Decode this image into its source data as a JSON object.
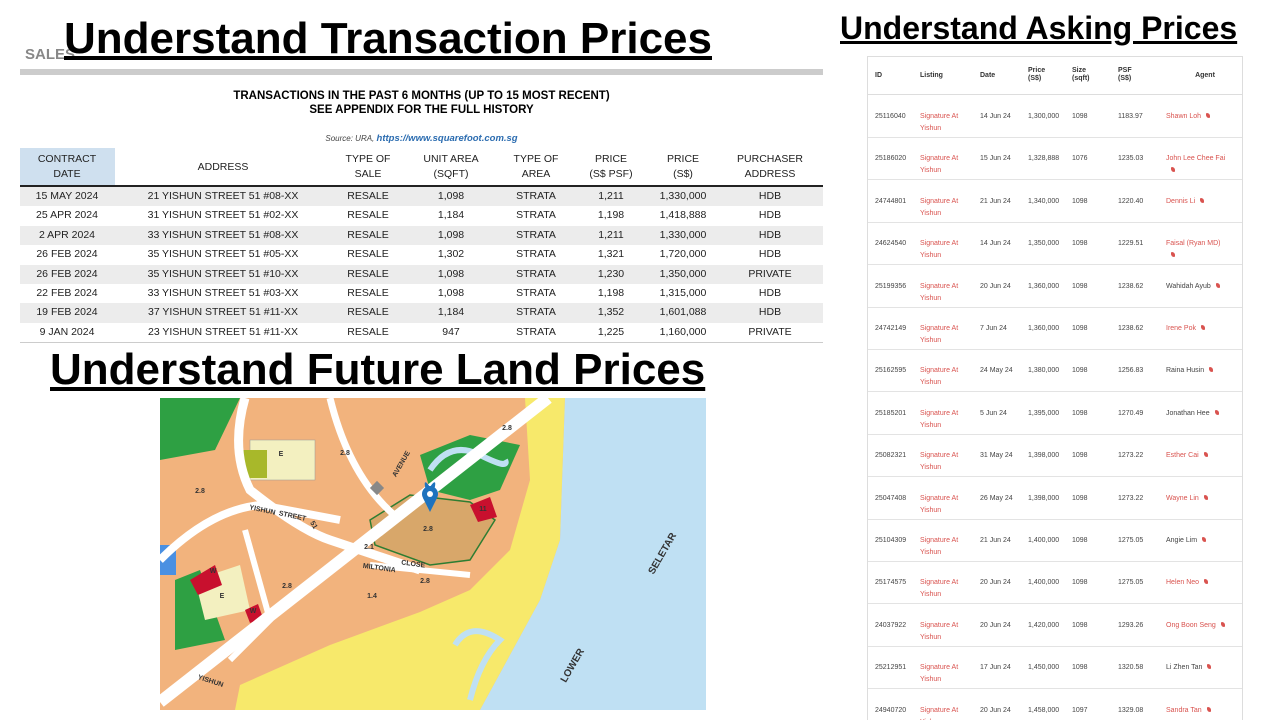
{
  "transaction_section": {
    "title": "Understand Transaction Prices",
    "sales_label": "SALES",
    "table_title": [
      "TRANSACTIONS IN THE PAST 6 MONTHS (UP TO 15 MOST RECENT)",
      "SEE APPENDIX FOR THE FULL HISTORY"
    ],
    "source_prefix": "Source: URA,",
    "source_link": "https://www.squarefoot.com.sg",
    "columns": [
      [
        "CONTRACT",
        "DATE"
      ],
      [
        "ADDRESS"
      ],
      [
        "TYPE OF",
        "SALE"
      ],
      [
        "UNIT AREA",
        "(SQFT)"
      ],
      [
        "TYPE OF",
        "AREA"
      ],
      [
        "PRICE",
        "(S$ PSF)"
      ],
      [
        "PRICE",
        "(S$)"
      ],
      [
        "PURCHASER",
        "ADDRESS"
      ]
    ],
    "rows": [
      [
        "15 MAY 2024",
        "21 YISHUN STREET 51 #08-XX",
        "RESALE",
        "1,098",
        "STRATA",
        "1,211",
        "1,330,000",
        "HDB"
      ],
      [
        "25 APR 2024",
        "31 YISHUN STREET 51 #02-XX",
        "RESALE",
        "1,184",
        "STRATA",
        "1,198",
        "1,418,888",
        "HDB"
      ],
      [
        "2 APR 2024",
        "33 YISHUN STREET 51 #08-XX",
        "RESALE",
        "1,098",
        "STRATA",
        "1,211",
        "1,330,000",
        "HDB"
      ],
      [
        "26 FEB 2024",
        "35 YISHUN STREET 51 #05-XX",
        "RESALE",
        "1,302",
        "STRATA",
        "1,321",
        "1,720,000",
        "HDB"
      ],
      [
        "26 FEB 2024",
        "35 YISHUN STREET 51 #10-XX",
        "RESALE",
        "1,098",
        "STRATA",
        "1,230",
        "1,350,000",
        "PRIVATE"
      ],
      [
        "22 FEB 2024",
        "33 YISHUN STREET 51 #03-XX",
        "RESALE",
        "1,098",
        "STRATA",
        "1,198",
        "1,315,000",
        "HDB"
      ],
      [
        "19 FEB 2024",
        "37 YISHUN STREET 51 #11-XX",
        "RESALE",
        "1,184",
        "STRATA",
        "1,352",
        "1,601,088",
        "HDB"
      ],
      [
        "9 JAN 2024",
        "23 YISHUN STREET 51 #11-XX",
        "RESALE",
        "947",
        "STRATA",
        "1,225",
        "1,160,000",
        "PRIVATE"
      ]
    ]
  },
  "land_section": {
    "title": "Understand Future Land Prices",
    "map_labels": [
      "2.8",
      "2.8",
      "2.8",
      "2.8",
      "2.8",
      "2.8",
      "E",
      "E",
      "W",
      "W",
      "11",
      "2.1",
      "1.4",
      "AVENUE",
      "YISHUN",
      "STREET",
      "51",
      "MILTONIA",
      "CLOSE",
      "SELETAR",
      "LOWER",
      "YISHUN"
    ]
  },
  "asking_section": {
    "title": "Understand Asking Prices",
    "columns": [
      [
        "ID"
      ],
      [
        "Listing"
      ],
      [
        "Date"
      ],
      [
        "Price",
        "(S$)"
      ],
      [
        "Size",
        "(sqft)"
      ],
      [
        "PSF",
        "(S$)"
      ],
      [
        "Agent"
      ]
    ],
    "rows": [
      {
        "id": "25116040",
        "listing": "Signature At Yishun",
        "date": "14 Jun 24",
        "price": "1,300,000",
        "size": "1098",
        "psf": "1183.97",
        "agent": "Shawn Loh",
        "agent_color": "#d9534f"
      },
      {
        "id": "25186020",
        "listing": "Signature At Yishun",
        "date": "15 Jun 24",
        "price": "1,328,888",
        "size": "1076",
        "psf": "1235.03",
        "agent": "John Lee Chee Fai",
        "agent_color": "#d9534f"
      },
      {
        "id": "24744801",
        "listing": "Signature At Yishun",
        "date": "21 Jun 24",
        "price": "1,340,000",
        "size": "1098",
        "psf": "1220.40",
        "agent": "Dennis Li",
        "agent_color": "#d9534f"
      },
      {
        "id": "24624540",
        "listing": "Signature At Yishun",
        "date": "14 Jun 24",
        "price": "1,350,000",
        "size": "1098",
        "psf": "1229.51",
        "agent": "Faisal (Ryan MD)",
        "agent_color": "#d9534f"
      },
      {
        "id": "25199356",
        "listing": "Signature At Yishun",
        "date": "20 Jun 24",
        "price": "1,360,000",
        "size": "1098",
        "psf": "1238.62",
        "agent": "Wahidah Ayub",
        "agent_color": "#444444"
      },
      {
        "id": "24742149",
        "listing": "Signature At Yishun",
        "date": "7 Jun 24",
        "price": "1,360,000",
        "size": "1098",
        "psf": "1238.62",
        "agent": "Irene Pok",
        "agent_color": "#d9534f"
      },
      {
        "id": "25162595",
        "listing": "Signature At Yishun",
        "date": "24 May 24",
        "price": "1,380,000",
        "size": "1098",
        "psf": "1256.83",
        "agent": "Raina Husin",
        "agent_color": "#444444"
      },
      {
        "id": "25185201",
        "listing": "Signature At Yishun",
        "date": "5 Jun 24",
        "price": "1,395,000",
        "size": "1098",
        "psf": "1270.49",
        "agent": "Jonathan Hee",
        "agent_color": "#444444"
      },
      {
        "id": "25082321",
        "listing": "Signature At Yishun",
        "date": "31 May 24",
        "price": "1,398,000",
        "size": "1098",
        "psf": "1273.22",
        "agent": "Esther Cai",
        "agent_color": "#d9534f"
      },
      {
        "id": "25047408",
        "listing": "Signature At Yishun",
        "date": "26 May 24",
        "price": "1,398,000",
        "size": "1098",
        "psf": "1273.22",
        "agent": "Wayne Lin",
        "agent_color": "#d9534f"
      },
      {
        "id": "25104309",
        "listing": "Signature At Yishun",
        "date": "21 Jun 24",
        "price": "1,400,000",
        "size": "1098",
        "psf": "1275.05",
        "agent": "Angie Lim",
        "agent_color": "#444444"
      },
      {
        "id": "25174575",
        "listing": "Signature At Yishun",
        "date": "20 Jun 24",
        "price": "1,400,000",
        "size": "1098",
        "psf": "1275.05",
        "agent": "Helen Neo",
        "agent_color": "#d9534f"
      },
      {
        "id": "24037922",
        "listing": "Signature At Yishun",
        "date": "20 Jun 24",
        "price": "1,420,000",
        "size": "1098",
        "psf": "1293.26",
        "agent": "Ong Boon Seng",
        "agent_color": "#d9534f"
      },
      {
        "id": "25212951",
        "listing": "Signature At Yishun",
        "date": "17 Jun 24",
        "price": "1,450,000",
        "size": "1098",
        "psf": "1320.58",
        "agent": "Li Zhen Tan",
        "agent_color": "#444444"
      },
      {
        "id": "24940720",
        "listing": "Signature At Yishun",
        "date": "20 Jun 24",
        "price": "1,458,000",
        "size": "1097",
        "psf": "1329.08",
        "agent": "Sandra Tan",
        "agent_color": "#d9534f"
      }
    ]
  }
}
